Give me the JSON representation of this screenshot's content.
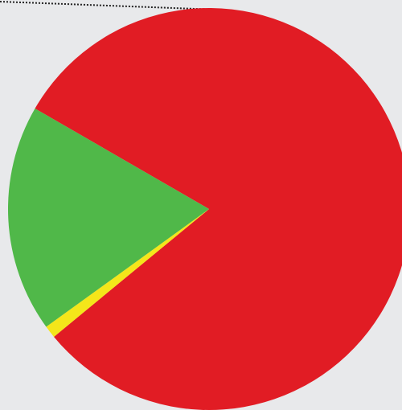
{
  "chart_data": {
    "type": "pie",
    "slices": [
      {
        "label": "",
        "value": 80.7,
        "color": "#e11c24"
      },
      {
        "label": "",
        "value": 1.0,
        "color": "#f4e61a"
      },
      {
        "label": "",
        "value": 18.3,
        "color": "#50b849"
      }
    ],
    "legend": "none"
  },
  "background_color": "#e8e9eb",
  "leader_line_color": "#222222"
}
